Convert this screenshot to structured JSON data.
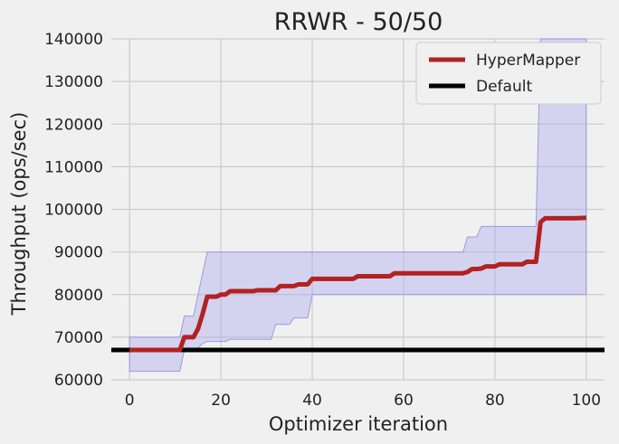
{
  "chart_data": {
    "type": "line",
    "title": "RRWR - 50/50",
    "xlabel": "Optimizer iteration",
    "ylabel": "Throughput (ops/sec)",
    "xlim": [
      -4,
      104
    ],
    "ylim": [
      60000,
      140000
    ],
    "xticks": [
      0,
      20,
      40,
      60,
      80,
      100
    ],
    "yticks": [
      60000,
      70000,
      80000,
      90000,
      100000,
      110000,
      120000,
      130000,
      140000
    ],
    "grid": true,
    "legend_position": "top-right",
    "series": [
      {
        "name": "HyperMapper",
        "color": "#b22222",
        "x": [
          0,
          11,
          12,
          14,
          15,
          16,
          17,
          19,
          20,
          21,
          22,
          27,
          28,
          32,
          33,
          36,
          37,
          39,
          40,
          49,
          50,
          57,
          58,
          73,
          74,
          75,
          76,
          77,
          78,
          80,
          81,
          86,
          87,
          89,
          90,
          91,
          92,
          97,
          100
        ],
        "y": [
          67000,
          67000,
          70000,
          70000,
          72000,
          75500,
          79500,
          79500,
          80000,
          80000,
          80800,
          80800,
          81000,
          81000,
          82000,
          82000,
          82400,
          82400,
          83700,
          83700,
          84300,
          84300,
          85000,
          85000,
          85300,
          86000,
          86000,
          86100,
          86600,
          86600,
          87100,
          87100,
          87700,
          87700,
          97000,
          97900,
          97900,
          97900,
          98000
        ]
      },
      {
        "name": "Default",
        "color": "#000000",
        "x": [
          -4,
          104
        ],
        "y": [
          67000,
          67000
        ]
      }
    ],
    "band": {
      "series": "HyperMapper",
      "color": "#b0b0f0",
      "x": [
        0,
        11,
        12,
        14,
        15,
        16,
        17,
        21,
        22,
        31,
        32,
        35,
        36,
        39,
        40,
        73,
        74,
        76,
        77,
        89,
        90,
        100
      ],
      "lower": [
        62000,
        62000,
        67000,
        67000,
        67500,
        68500,
        69000,
        69000,
        69500,
        69500,
        73000,
        73000,
        74500,
        74500,
        80000,
        80000,
        80000,
        80000,
        80000,
        80000,
        80000,
        80000
      ],
      "upper": [
        70000,
        70000,
        75000,
        75000,
        80000,
        85000,
        90000,
        90000,
        90000,
        90000,
        90000,
        90000,
        90000,
        90000,
        90000,
        90000,
        93500,
        93500,
        96000,
        96000,
        140000,
        140000
      ]
    }
  }
}
